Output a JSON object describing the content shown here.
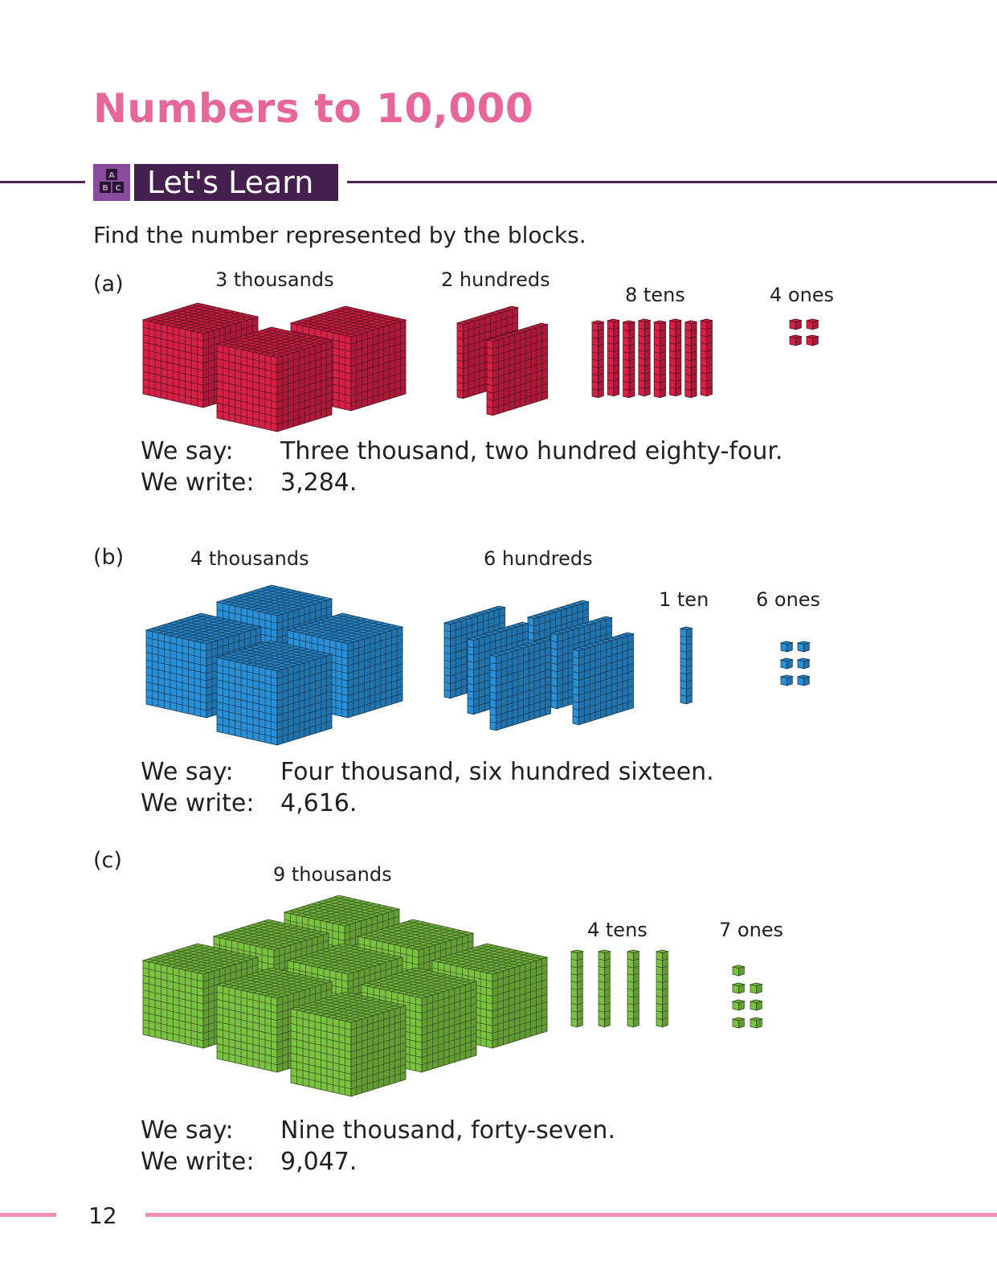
{
  "title": "Numbers to 10,000",
  "section": {
    "label": "Let's Learn",
    "icon": "abc-blocks-icon"
  },
  "instruction": "Find the number represented by the blocks.",
  "say_label": "We say:",
  "write_label": "We write:",
  "colors": {
    "title": "#e8679a",
    "header_bg": "#45204f",
    "a": "#d62147",
    "b": "#2b8fd6",
    "c": "#7cc242"
  },
  "items": [
    {
      "label": "(a)",
      "thousands": 3,
      "hundreds": 2,
      "tens": 8,
      "ones": 4,
      "thousands_label": "3 thousands",
      "hundreds_label": "2 hundreds",
      "tens_label": "8 tens",
      "ones_label": "4 ones",
      "say": "Three thousand, two hundred eighty-four.",
      "write": "3,284."
    },
    {
      "label": "(b)",
      "thousands": 4,
      "hundreds": 6,
      "tens": 1,
      "ones": 6,
      "thousands_label": "4 thousands",
      "hundreds_label": "6 hundreds",
      "tens_label": "1 ten",
      "ones_label": "6 ones",
      "say": "Four thousand, six hundred sixteen.",
      "write": "4,616."
    },
    {
      "label": "(c)",
      "thousands": 9,
      "hundreds": 0,
      "tens": 4,
      "ones": 7,
      "thousands_label": "9 thousands",
      "tens_label": "4 tens",
      "ones_label": "7 ones",
      "say": "Nine thousand, forty-seven.",
      "write": "9,047."
    }
  ],
  "page_number": "12"
}
